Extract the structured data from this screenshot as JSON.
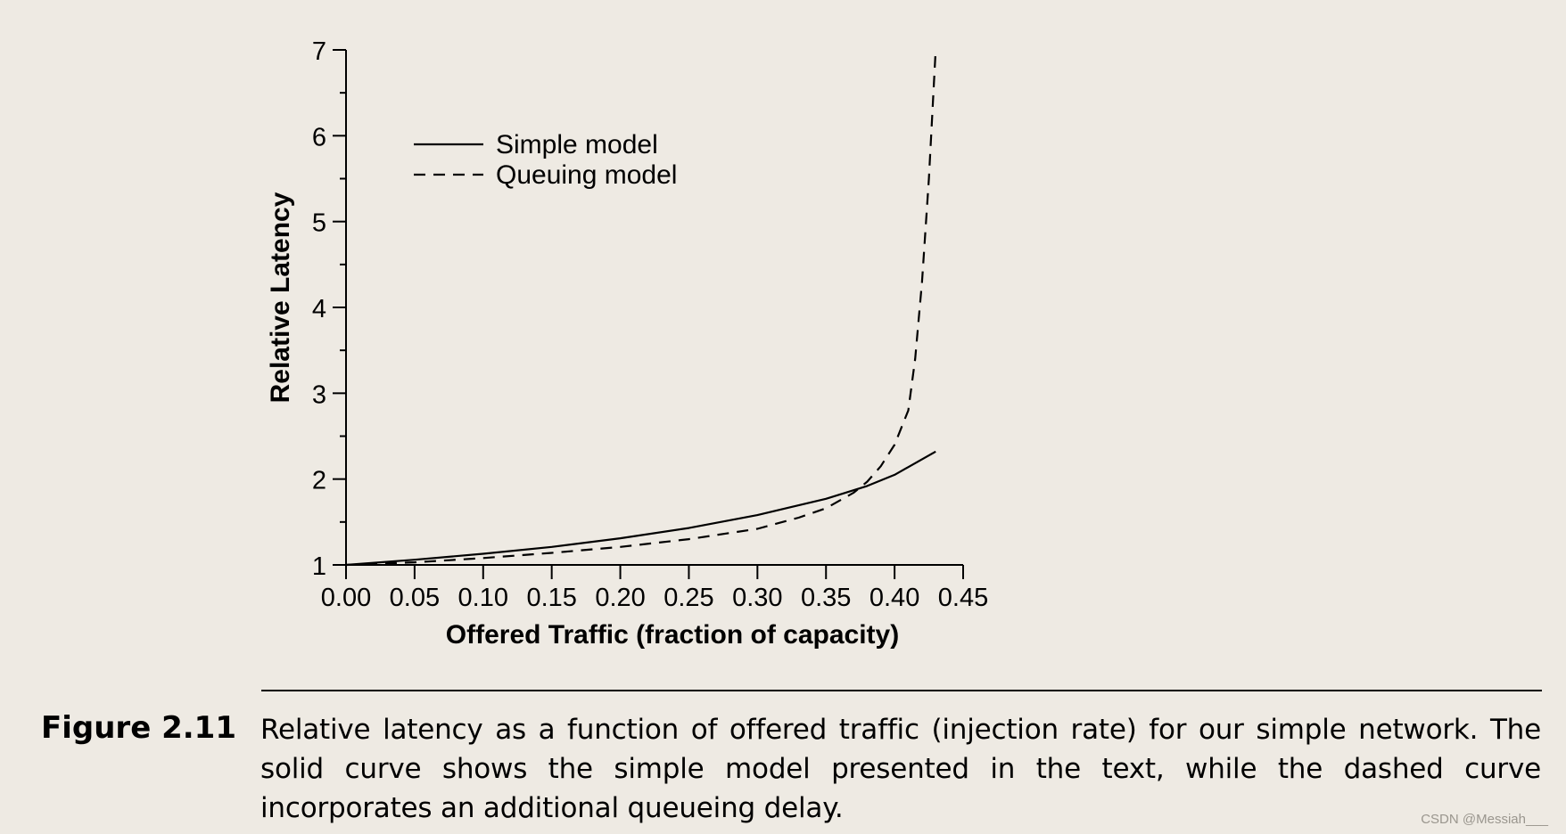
{
  "chart_data": {
    "type": "line",
    "title": "",
    "xlabel": "Offered Traffic (fraction of capacity)",
    "ylabel": "Relative Latency",
    "xlim": [
      0,
      0.45
    ],
    "ylim": [
      1,
      7
    ],
    "grid": false,
    "legend_position": "top-left",
    "x_tick_labels": [
      "0.00",
      "0.05",
      "0.10",
      "0.15",
      "0.20",
      "0.25",
      "0.30",
      "0.35",
      "0.40",
      "0.45"
    ],
    "y_tick_labels": [
      "1",
      "2",
      "3",
      "4",
      "5",
      "6",
      "7"
    ],
    "series": [
      {
        "name": "Simple model",
        "style": "solid",
        "x": [
          0.0,
          0.05,
          0.1,
          0.15,
          0.2,
          0.25,
          0.3,
          0.35,
          0.38,
          0.4,
          0.43
        ],
        "y": [
          1.0,
          1.06,
          1.13,
          1.21,
          1.31,
          1.43,
          1.58,
          1.77,
          1.92,
          2.05,
          2.32
        ]
      },
      {
        "name": "Queuing model",
        "style": "dashed",
        "x": [
          0.0,
          0.05,
          0.1,
          0.15,
          0.2,
          0.25,
          0.3,
          0.33,
          0.35,
          0.37,
          0.38,
          0.39,
          0.4,
          0.41,
          0.415,
          0.42,
          0.425,
          0.43
        ],
        "y": [
          1.0,
          1.03,
          1.08,
          1.14,
          1.21,
          1.3,
          1.42,
          1.55,
          1.66,
          1.84,
          1.97,
          2.15,
          2.4,
          2.8,
          3.4,
          4.3,
          5.5,
          7.0
        ]
      }
    ]
  },
  "caption": {
    "label": "Figure 2.11",
    "text": "Relative latency as a function of offered traffic (injection rate) for our simple network. The solid curve shows the simple model presented in the text, while the dashed curve incorporates an additional queueing delay."
  },
  "watermark": "CSDN @Messiah___"
}
